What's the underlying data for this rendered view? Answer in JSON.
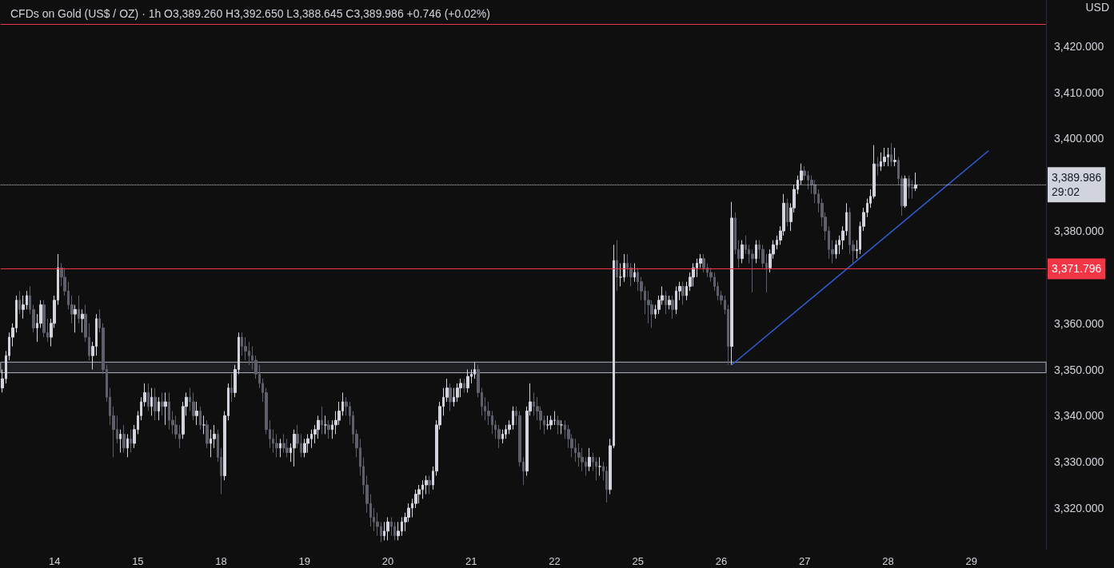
{
  "chart_data": {
    "type": "candlestick",
    "title": "CFDs on Gold (US$ / OZ) · 1h",
    "subtitle": "O3,389.260 H3,392.650 L3,388.645 C3,389.986 +0.746 (+0.02%)",
    "ylabel": "USD",
    "colors": [
      "#d1d4dc",
      "#d1d4dc",
      "#d1d4dc",
      "#d1d4dc",
      "#d1d4dc",
      "#5d606b",
      "#d1d4dc",
      "#d1d4dc",
      "#5d606b",
      "#5d606b",
      "#d1d4dc",
      "#d1d4dc",
      "#5d606b",
      "#5d606b",
      "#d1d4dc",
      "#d1d4dc",
      "#d1d4dc",
      "#5d606b",
      "#5d606b",
      "#5d606b",
      "#5d606b",
      "#d1d4dc",
      "#5d606b",
      "#d1d4dc",
      "#5d606b",
      "#5d606b",
      "#d1d4dc",
      "#d1d4dc",
      "#5d606b",
      "#5d606b",
      "#5d606b",
      "#5d606b",
      "#5d606b",
      "#5d606b",
      "#d1d4dc",
      "#5d606b",
      "#d1d4dc",
      "#5d606b",
      "#d1d4dc",
      "#d1d4dc",
      "#d1d4dc",
      "#d1d4dc",
      "#5d606b",
      "#d1d4dc",
      "#5d606b",
      "#d1d4dc",
      "#5d606b",
      "#d1d4dc",
      "#5d606b",
      "#5d606b",
      "#5d606b",
      "#5d606b",
      "#d1d4dc",
      "#d1d4dc",
      "#5d606b",
      "#5d606b",
      "#d1d4dc",
      "#5d606b",
      "#d1d4dc",
      "#5d606b",
      "#d1d4dc",
      "#d1d4dc",
      "#5d606b",
      "#5d606b",
      "#d1d4dc",
      "#d1d4dc",
      "#5d606b",
      "#d1d4dc",
      "#d1d4dc",
      "#5d606b",
      "#5d606b",
      "#5d606b",
      "#5d606b",
      "#5d606b",
      "#5d606b",
      "#5d606b",
      "#5d606b",
      "#5d606b",
      "#5d606b",
      "#5d606b",
      "#d1d4dc",
      "#5d606b",
      "#5d606b",
      "#d1d4dc",
      "#d1d4dc",
      "#5d606b",
      "#5d606b",
      "#d1d4dc",
      "#d1d4dc",
      "#d1d4dc",
      "#d1d4dc",
      "#d1d4dc",
      "#5d606b",
      "#d1d4dc",
      "#5d606b",
      "#d1d4dc",
      "#d1d4dc",
      "#d1d4dc",
      "#d1d4dc",
      "#5d606b",
      "#5d606b",
      "#5d606b",
      "#5d606b",
      "#5d606b",
      "#5d606b",
      "#5d606b",
      "#5d606b",
      "#5d606b",
      "#5d606b",
      "#5d606b",
      "#d1d4dc",
      "#d1d4dc",
      "#5d606b",
      "#5d606b",
      "#d1d4dc",
      "#d1d4dc",
      "#d1d4dc",
      "#d1d4dc",
      "#d1d4dc",
      "#d1d4dc",
      "#d1d4dc",
      "#d1d4dc",
      "#d1d4dc",
      "#5d606b",
      "#d1d4dc",
      "#d1d4dc",
      "#d1d4dc",
      "#d1d4dc",
      "#d1d4dc",
      "#5d606b",
      "#d1d4dc",
      "#d1d4dc",
      "#d1d4dc",
      "#5d606b",
      "#d1d4dc",
      "#d1d4dc",
      "#d1d4dc",
      "#5d606b",
      "#5d606b",
      "#5d606b",
      "#5d606b",
      "#5d606b",
      "#5d606b",
      "#5d606b",
      "#d1d4dc",
      "#d1d4dc",
      "#d1d4dc",
      "#d1d4dc",
      "#5d606b",
      "#5d606b",
      "#5d606b",
      "#d1d4dc",
      "#d1d4dc",
      "#5d606b",
      "#5d606b",
      "#5d606b",
      "#5d606b",
      "#d1d4dc",
      "#d1d4dc",
      "#d1d4dc",
      "#5d606b",
      "#d1d4dc",
      "#5d606b",
      "#5d606b",
      "#5d606b",
      "#5d606b",
      "#5d606b",
      "#5d606b",
      "#5d606b",
      "#d1d4dc",
      "#5d606b",
      "#5d606b",
      "#d1d4dc",
      "#5d606b",
      "#5d606b",
      "#d1d4dc",
      "#d1d4dc",
      "#5d606b",
      "#d1d4dc",
      "#d1d4dc",
      "#5d606b",
      "#5d606b",
      "#d1d4dc",
      "#5d606b",
      "#5d606b",
      "#5d606b",
      "#5d606b",
      "#5d606b",
      "#d1d4dc",
      "#d1d4dc",
      "#d1d4dc",
      "#5d606b",
      "#d1d4dc",
      "#5d606b",
      "#d1d4dc",
      "#d1d4dc",
      "#5d606b",
      "#d1d4dc",
      "#d1d4dc",
      "#d1d4dc",
      "#d1d4dc",
      "#d1d4dc",
      "#5d606b",
      "#5d606b",
      "#5d606b",
      "#5d606b",
      "#5d606b",
      "#5d606b",
      "#5d606b",
      "#5d606b",
      "#d1d4dc",
      "#5d606b",
      "#5d606b",
      "#d1d4dc",
      "#5d606b",
      "#5d606b",
      "#5d606b",
      "#d1d4dc",
      "#5d606b",
      "#5d606b",
      "#5d606b",
      "#d1d4dc",
      "#d1d4dc",
      "#d1d4dc",
      "#d1d4dc",
      "#d1d4dc",
      "#5d606b",
      "#d1d4dc",
      "#d1d4dc",
      "#d1d4dc",
      "#d1d4dc",
      "#5d606b",
      "#5d606b",
      "#5d606b",
      "#5d606b",
      "#5d606b",
      "#5d606b",
      "#5d606b",
      "#5d606b",
      "#5d606b",
      "#d1d4dc",
      "#d1d4dc",
      "#d1d4dc",
      "#d1d4dc",
      "#5d606b",
      "#5d606b",
      "#d1d4dc",
      "#d1d4dc",
      "#d1d4dc",
      "#d1d4dc",
      "#d1d4dc",
      "#d1d4dc",
      "#5d606b",
      "#d1d4dc",
      "#d1d4dc",
      "#d1d4dc",
      "#5d606b",
      "#d1d4dc",
      "#5d606b",
      "#5d606b",
      "#d1d4dc",
      "#5d606b",
      "#5d606b",
      "#d1d4dc",
      null,
      null,
      null,
      null,
      null,
      null,
      null,
      null,
      null,
      null,
      null,
      null,
      null,
      null,
      null,
      null,
      null,
      null,
      null,
      null,
      null,
      null,
      null,
      null,
      null,
      null,
      null,
      null,
      null,
      null,
      null,
      null,
      null,
      null,
      null,
      null,
      null
    ],
    "categories": [
      null,
      null,
      null,
      null,
      null,
      null,
      null,
      null,
      null,
      null,
      null,
      null,
      null,
      null,
      null,
      "14",
      null,
      null,
      null,
      null,
      null,
      null,
      null,
      null,
      null,
      null,
      null,
      null,
      null,
      null,
      null,
      null,
      null,
      null,
      null,
      null,
      null,
      null,
      null,
      "15",
      null,
      null,
      null,
      null,
      null,
      null,
      null,
      null,
      null,
      null,
      null,
      null,
      null,
      null,
      null,
      null,
      null,
      null,
      null,
      null,
      null,
      null,
      null,
      "18",
      null,
      null,
      null,
      null,
      null,
      null,
      null,
      null,
      null,
      null,
      null,
      null,
      null,
      null,
      null,
      null,
      null,
      null,
      null,
      null,
      null,
      null,
      null,
      "19",
      null,
      null,
      null,
      null,
      null,
      null,
      null,
      null,
      null,
      null,
      null,
      null,
      null,
      null,
      null,
      null,
      null,
      null,
      null,
      null,
      null,
      null,
      null,
      "20",
      null,
      null,
      null,
      null,
      null,
      null,
      null,
      null,
      null,
      null,
      null,
      null,
      null,
      null,
      null,
      null,
      null,
      null,
      null,
      null,
      null,
      null,
      null,
      "21",
      null,
      null,
      null,
      null,
      null,
      null,
      null,
      null,
      null,
      null,
      null,
      null,
      null,
      null,
      null,
      null,
      null,
      null,
      null,
      null,
      null,
      null,
      null,
      "22",
      null,
      null,
      null,
      null,
      null,
      null,
      null,
      null,
      null,
      null,
      null,
      null,
      null,
      null,
      null,
      null,
      null,
      null,
      null,
      null,
      null,
      null,
      null,
      "25",
      null,
      null,
      null,
      null,
      null,
      null,
      null,
      null,
      null,
      null,
      null,
      null,
      null,
      null,
      null,
      null,
      null,
      null,
      null,
      null,
      null,
      null,
      null,
      "26",
      null,
      null,
      null,
      null,
      null,
      null,
      null,
      null,
      null,
      null,
      null,
      null,
      null,
      null,
      null,
      null,
      null,
      null,
      null,
      null,
      null,
      null,
      null,
      "27",
      null,
      null,
      null,
      null,
      null,
      null,
      null,
      null,
      null,
      null,
      null,
      null,
      null,
      null,
      null,
      null,
      null,
      null,
      null,
      null,
      null,
      null,
      null,
      "28",
      null,
      null,
      null,
      null,
      null,
      null,
      null,
      null,
      null,
      null,
      null,
      null,
      null,
      null,
      null,
      null,
      null,
      null,
      null,
      null,
      null,
      null,
      null,
      "29",
      null,
      null,
      null,
      null,
      null,
      null,
      null,
      null,
      null,
      null,
      null,
      null,
      null,
      null,
      null,
      null,
      null,
      null,
      null,
      null,
      null
    ],
    "ohlc": [
      [
        3346,
        3350,
        3345,
        3348
      ],
      [
        3348,
        3354,
        3347,
        3353
      ],
      [
        3353,
        3358,
        3352,
        3357
      ],
      [
        3357,
        3360,
        3355,
        3359
      ],
      [
        3359,
        3366,
        3358,
        3365
      ],
      [
        3365,
        3367,
        3362,
        3363
      ],
      [
        3363,
        3366,
        3361,
        3364
      ],
      [
        3364,
        3367,
        3363,
        3366
      ],
      [
        3366,
        3368,
        3362,
        3363
      ],
      [
        3363,
        3364,
        3358,
        3359
      ],
      [
        3359,
        3362,
        3356,
        3360
      ],
      [
        3360,
        3365,
        3359,
        3364
      ],
      [
        3364,
        3365,
        3357,
        3358
      ],
      [
        3358,
        3361,
        3356,
        3357
      ],
      [
        3357,
        3361,
        3355,
        3360
      ],
      [
        3360,
        3366,
        3359,
        3365
      ],
      [
        3365,
        3375,
        3364,
        3372
      ],
      [
        3372,
        3373,
        3368,
        3370
      ],
      [
        3370,
        3372,
        3366,
        3367
      ],
      [
        3367,
        3369,
        3363,
        3364
      ],
      [
        3364,
        3366,
        3360,
        3362
      ],
      [
        3362,
        3364,
        3358,
        3363
      ],
      [
        3363,
        3366,
        3360,
        3361
      ],
      [
        3361,
        3363,
        3358,
        3362
      ],
      [
        3362,
        3364,
        3356,
        3357
      ],
      [
        3357,
        3360,
        3352,
        3353
      ],
      [
        3353,
        3356,
        3350,
        3355
      ],
      [
        3355,
        3362,
        3353,
        3361
      ],
      [
        3361,
        3363,
        3358,
        3359
      ],
      [
        3359,
        3360,
        3349,
        3350
      ],
      [
        3350,
        3351,
        3343,
        3344
      ],
      [
        3344,
        3346,
        3338,
        3340
      ],
      [
        3340,
        3342,
        3331,
        3337
      ],
      [
        3337,
        3340,
        3334,
        3335
      ],
      [
        3335,
        3337,
        3332,
        3336
      ],
      [
        3336,
        3338,
        3332,
        3333
      ],
      [
        3333,
        3336,
        3331,
        3335
      ],
      [
        3335,
        3337,
        3332,
        3334
      ],
      [
        3334,
        3338,
        3333,
        3337
      ],
      [
        3337,
        3341,
        3336,
        3340
      ],
      [
        3340,
        3344,
        3339,
        3343
      ],
      [
        3343,
        3347,
        3342,
        3345
      ],
      [
        3345,
        3347,
        3341,
        3342
      ],
      [
        3342,
        3346,
        3340,
        3344
      ],
      [
        3344,
        3346,
        3339,
        3341
      ],
      [
        3341,
        3344,
        3339,
        3343
      ],
      [
        3343,
        3345,
        3340,
        3342
      ],
      [
        3342,
        3345,
        3338,
        3343
      ],
      [
        3343,
        3345,
        3337,
        3339
      ],
      [
        3339,
        3341,
        3336,
        3338
      ],
      [
        3338,
        3340,
        3335,
        3336
      ],
      [
        3336,
        3338,
        3333,
        3335
      ],
      [
        3336,
        3343,
        3335,
        3342
      ],
      [
        3342,
        3345,
        3340,
        3344
      ],
      [
        3344,
        3346,
        3341,
        3343
      ],
      [
        3343,
        3345,
        3339,
        3340
      ],
      [
        3340,
        3343,
        3338,
        3341
      ],
      [
        3341,
        3342,
        3337,
        3338
      ],
      [
        3338,
        3340,
        3336,
        3338
      ],
      [
        3338,
        3339,
        3333,
        3334
      ],
      [
        3334,
        3337,
        3331,
        3335
      ],
      [
        3335,
        3338,
        3333,
        3336
      ],
      [
        3336,
        3337,
        3330,
        3331
      ],
      [
        3331,
        3333,
        3323,
        3327
      ],
      [
        3327,
        3341,
        3326,
        3340
      ],
      [
        3340,
        3347,
        3339,
        3346
      ],
      [
        3346,
        3349,
        3343,
        3345
      ],
      [
        3345,
        3351,
        3344,
        3350
      ],
      [
        3350,
        3358,
        3349,
        3357
      ],
      [
        3357,
        3358,
        3353,
        3355
      ],
      [
        3355,
        3357,
        3352,
        3354
      ],
      [
        3354,
        3356,
        3351,
        3353
      ],
      [
        3353,
        3355,
        3350,
        3352
      ],
      [
        3352,
        3353,
        3348,
        3349
      ],
      [
        3349,
        3351,
        3346,
        3347
      ],
      [
        3347,
        3348,
        3343,
        3345
      ],
      [
        3345,
        3346,
        3336,
        3337
      ],
      [
        3337,
        3339,
        3333,
        3335
      ],
      [
        3335,
        3337,
        3332,
        3334
      ],
      [
        3334,
        3336,
        3331,
        3333
      ],
      [
        3333,
        3335,
        3331,
        3334
      ],
      [
        3334,
        3336,
        3332,
        3333
      ],
      [
        3333,
        3335,
        3331,
        3332
      ],
      [
        3332,
        3334,
        3330,
        3333
      ],
      [
        3333,
        3337,
        3329,
        3336
      ],
      [
        3336,
        3338,
        3333,
        3334
      ],
      [
        3334,
        3336,
        3331,
        3332
      ],
      [
        3332,
        3335,
        3331,
        3334
      ],
      [
        3334,
        3336,
        3332,
        3335
      ],
      [
        3335,
        3337,
        3333,
        3336
      ],
      [
        3336,
        3338,
        3334,
        3337
      ],
      [
        3337,
        3340,
        3335,
        3339
      ],
      [
        3339,
        3342,
        3336,
        3338
      ],
      [
        3338,
        3340,
        3336,
        3338
      ],
      [
        3338,
        3339,
        3335,
        3337
      ],
      [
        3337,
        3339,
        3335,
        3338
      ],
      [
        3338,
        3341,
        3336,
        3339
      ],
      [
        3339,
        3343,
        3338,
        3341
      ],
      [
        3341,
        3345,
        3340,
        3343
      ],
      [
        3343,
        3344,
        3340,
        3342
      ],
      [
        3342,
        3343,
        3338,
        3340
      ],
      [
        3340,
        3341,
        3334,
        3336
      ],
      [
        3336,
        3337,
        3331,
        3333
      ],
      [
        3333,
        3335,
        3327,
        3329
      ],
      [
        3329,
        3331,
        3323,
        3325
      ],
      [
        3325,
        3327,
        3319,
        3321
      ],
      [
        3321,
        3323,
        3316,
        3318
      ],
      [
        3318,
        3320,
        3315,
        3317
      ],
      [
        3317,
        3319,
        3314,
        3316
      ],
      [
        3316,
        3317,
        3312.6,
        3314
      ],
      [
        3314,
        3317,
        3313,
        3315
      ],
      [
        3315,
        3318,
        3313,
        3317
      ],
      [
        3317,
        3318,
        3314,
        3316
      ],
      [
        3316,
        3317,
        3313,
        3314
      ],
      [
        3314,
        3317,
        3313,
        3315
      ],
      [
        3315,
        3318,
        3314,
        3317
      ],
      [
        3317,
        3319,
        3315,
        3318
      ],
      [
        3318,
        3321,
        3317,
        3320
      ],
      [
        3320,
        3322,
        3318,
        3321
      ],
      [
        3321,
        3324,
        3320,
        3323
      ],
      [
        3323,
        3325,
        3321,
        3324
      ],
      [
        3324,
        3326,
        3322,
        3325
      ],
      [
        3325,
        3327,
        3323,
        3326
      ],
      [
        3326,
        3327,
        3323,
        3325
      ],
      [
        3325,
        3329,
        3324,
        3328
      ],
      [
        3328,
        3339,
        3327,
        3338
      ],
      [
        3338,
        3343,
        3337,
        3342
      ],
      [
        3342,
        3346,
        3340,
        3344
      ],
      [
        3344,
        3348,
        3343,
        3346
      ],
      [
        3346,
        3347,
        3341,
        3343
      ],
      [
        3343,
        3346,
        3342,
        3344
      ],
      [
        3344,
        3347,
        3343,
        3346
      ],
      [
        3346,
        3348,
        3344,
        3347
      ],
      [
        3347,
        3348,
        3345,
        3346
      ],
      [
        3346,
        3350,
        3345,
        3348.5
      ],
      [
        3348.5,
        3350,
        3347,
        3349
      ],
      [
        3349,
        3351.6,
        3348,
        3350
      ],
      [
        3350,
        3351,
        3344,
        3345
      ],
      [
        3345,
        3346,
        3340,
        3342
      ],
      [
        3342,
        3344,
        3339,
        3341
      ],
      [
        3341,
        3343,
        3338,
        3340
      ],
      [
        3340,
        3341,
        3336,
        3338
      ],
      [
        3338,
        3339,
        3335,
        3337
      ],
      [
        3337,
        3338,
        3333,
        3335
      ],
      [
        3335,
        3337,
        3334,
        3336
      ],
      [
        3336,
        3338,
        3335,
        3337
      ],
      [
        3337,
        3339,
        3336,
        3338
      ],
      [
        3338,
        3342,
        3337,
        3341
      ],
      [
        3341,
        3342,
        3338,
        3340
      ],
      [
        3340,
        3341,
        3329,
        3330
      ],
      [
        3330,
        3331,
        3325,
        3328
      ],
      [
        3328,
        3342,
        3327,
        3341
      ],
      [
        3341,
        3347,
        3340,
        3343
      ],
      [
        3343,
        3345,
        3340,
        3342
      ],
      [
        3342,
        3344,
        3339,
        3341
      ],
      [
        3341,
        3342,
        3337,
        3339
      ],
      [
        3339,
        3340,
        3336,
        3338
      ],
      [
        3338,
        3340,
        3337,
        3338
      ],
      [
        3338,
        3340,
        3337,
        3339
      ],
      [
        3339,
        3341,
        3338,
        3339
      ],
      [
        3339,
        3340,
        3336,
        3338
      ],
      [
        3338,
        3339,
        3336,
        3338
      ],
      [
        3338,
        3339,
        3335,
        3337
      ],
      [
        3337,
        3338,
        3333,
        3335
      ],
      [
        3335,
        3336,
        3331,
        3333
      ],
      [
        3333,
        3335,
        3330,
        3332
      ],
      [
        3332,
        3334,
        3329,
        3331
      ],
      [
        3331,
        3333,
        3328,
        3330
      ],
      [
        3330,
        3331,
        3327,
        3329
      ],
      [
        3329,
        3333,
        3328,
        3331
      ],
      [
        3331,
        3332,
        3328,
        3330
      ],
      [
        3330,
        3331,
        3326,
        3329
      ],
      [
        3329,
        3331,
        3327,
        3329
      ],
      [
        3329,
        3330,
        3326,
        3328
      ],
      [
        3328,
        3329,
        3321.2,
        3324
      ],
      [
        3324,
        3335,
        3323,
        3333.5
      ],
      [
        3333.5,
        3377,
        3333,
        3373.6
      ],
      [
        3373.6,
        3378,
        3367,
        3370
      ],
      [
        3370,
        3373,
        3368,
        3370
      ],
      [
        3370,
        3375,
        3369,
        3373
      ],
      [
        3373,
        3375,
        3370,
        3372
      ],
      [
        3372,
        3373,
        3368,
        3370
      ],
      [
        3370,
        3373,
        3369,
        3371
      ],
      [
        3371,
        3372,
        3367,
        3369
      ],
      [
        3369,
        3370,
        3365,
        3367
      ],
      [
        3367,
        3368,
        3362,
        3365
      ],
      [
        3365,
        3367,
        3360,
        3364
      ],
      [
        3364,
        3365,
        3359,
        3362
      ],
      [
        3362,
        3364,
        3361,
        3363
      ],
      [
        3363,
        3366,
        3362,
        3365
      ],
      [
        3365,
        3368,
        3364,
        3366
      ],
      [
        3366,
        3367,
        3362,
        3364
      ],
      [
        3364,
        3366,
        3363,
        3365
      ],
      [
        3365,
        3366,
        3361,
        3363
      ],
      [
        3363,
        3368,
        3362,
        3367
      ],
      [
        3367,
        3369,
        3365,
        3368
      ],
      [
        3368,
        3369,
        3364,
        3366
      ],
      [
        3366,
        3369,
        3365,
        3368
      ],
      [
        3368,
        3371,
        3367,
        3370
      ],
      [
        3370,
        3373,
        3368,
        3372
      ],
      [
        3372,
        3374,
        3370,
        3373
      ],
      [
        3373,
        3375,
        3372,
        3374
      ],
      [
        3374,
        3375,
        3371,
        3372
      ],
      [
        3372,
        3373,
        3370,
        3371
      ],
      [
        3371,
        3372,
        3369,
        3370
      ],
      [
        3370,
        3371,
        3367,
        3368
      ],
      [
        3368,
        3369,
        3365,
        3366
      ],
      [
        3366,
        3367,
        3364,
        3365
      ],
      [
        3365,
        3366,
        3362,
        3363
      ],
      [
        3363,
        3364,
        3351,
        3355
      ],
      [
        3355,
        3386.3,
        3351,
        3382.8
      ],
      [
        3382.8,
        3384,
        3375,
        3376
      ],
      [
        3376,
        3378,
        3372,
        3374
      ],
      [
        3374,
        3378,
        3373,
        3377
      ],
      [
        3377,
        3379,
        3375,
        3376
      ],
      [
        3376,
        3377,
        3373,
        3375
      ],
      [
        3375,
        3376,
        3366.7,
        3374
      ],
      [
        3374,
        3378,
        3373,
        3377
      ],
      [
        3377,
        3378,
        3374,
        3376
      ],
      [
        3376,
        3377,
        3372,
        3373
      ],
      [
        3373,
        3375,
        3366.7,
        3372
      ],
      [
        3372,
        3376,
        3371,
        3375
      ],
      [
        3375,
        3378,
        3374,
        3377
      ],
      [
        3377,
        3379,
        3376,
        3378
      ],
      [
        3378,
        3381,
        3377,
        3380
      ],
      [
        3380,
        3388,
        3379,
        3386
      ],
      [
        3386,
        3387,
        3381,
        3382
      ],
      [
        3382,
        3386,
        3380,
        3385
      ],
      [
        3385,
        3390,
        3384,
        3389
      ],
      [
        3389,
        3392,
        3388,
        3391
      ],
      [
        3391,
        3394.6,
        3390,
        3393
      ],
      [
        3393,
        3394,
        3391,
        3392
      ],
      [
        3392,
        3393,
        3389,
        3391
      ],
      [
        3391,
        3392,
        3388,
        3390
      ],
      [
        3390,
        3391,
        3386,
        3388
      ],
      [
        3388,
        3389,
        3384,
        3386
      ],
      [
        3386,
        3387,
        3381,
        3383
      ],
      [
        3383,
        3384,
        3378,
        3380
      ],
      [
        3380,
        3381,
        3374,
        3376
      ],
      [
        3376,
        3378,
        3373,
        3375
      ],
      [
        3375,
        3378,
        3374,
        3377
      ],
      [
        3377,
        3379,
        3375,
        3378
      ],
      [
        3378,
        3381,
        3376,
        3380
      ],
      [
        3380,
        3386,
        3379,
        3384
      ],
      [
        3384,
        3385,
        3375,
        3377
      ],
      [
        3377,
        3378,
        3373,
        3375.7
      ],
      [
        3375.7,
        3378,
        3374,
        3376
      ],
      [
        3376,
        3382,
        3375,
        3381
      ],
      [
        3381,
        3385,
        3380,
        3384
      ],
      [
        3384,
        3387,
        3383,
        3386
      ],
      [
        3386,
        3389,
        3385,
        3387.5
      ],
      [
        3387.5,
        3398.6,
        3387,
        3394.5
      ],
      [
        3394.5,
        3396,
        3392,
        3394
      ],
      [
        3394,
        3397,
        3393,
        3395
      ],
      [
        3395,
        3398,
        3394,
        3396
      ],
      [
        3396,
        3398,
        3394,
        3396.5
      ],
      [
        3396.5,
        3399,
        3394,
        3395
      ],
      [
        3395,
        3398,
        3394,
        3395.3
      ],
      [
        3395.3,
        3396,
        3390,
        3391.3
      ],
      [
        3391.3,
        3392,
        3383.3,
        3385.4
      ],
      [
        3385.4,
        3392,
        3385,
        3391.3
      ],
      [
        3391.3,
        3392,
        3387,
        3389.5
      ],
      [
        3389.5,
        3391,
        3387,
        3389.26
      ],
      [
        3389.26,
        3392.65,
        3388.645,
        3389.986
      ],
      null,
      null,
      null,
      null,
      null,
      null,
      null,
      null,
      null,
      null,
      null,
      null,
      null,
      null,
      null,
      null,
      null,
      null,
      null,
      null,
      null,
      null,
      null,
      null,
      null,
      null,
      null,
      null,
      null,
      null,
      null,
      null,
      null,
      null,
      null,
      null,
      null
    ],
    "ylim": [
      3311,
      3430
    ],
    "yticks": [
      {
        "value": 3320,
        "label": "3,320.000"
      },
      {
        "value": 3330,
        "label": "3,330.000"
      },
      {
        "value": 3340,
        "label": "3,340.000"
      },
      {
        "value": 3350,
        "label": "3,350.000"
      },
      {
        "value": 3360,
        "label": "3,360.000"
      },
      {
        "value": 3380,
        "label": "3,380.000"
      },
      {
        "value": 3400,
        "label": "3,400.000"
      },
      {
        "value": 3410,
        "label": "3,410.000"
      },
      {
        "value": 3420,
        "label": "3,420.000"
      }
    ],
    "series": [
      {
        "type": "line",
        "values": [
          null,
          null,
          null,
          null,
          null,
          null,
          null,
          null,
          null,
          null,
          null,
          null,
          null,
          null,
          null,
          null,
          null,
          null,
          null,
          null,
          null,
          null,
          null,
          null,
          null,
          null,
          null,
          null,
          null,
          null,
          null,
          null,
          null,
          null,
          null,
          null,
          null,
          null,
          null,
          null,
          null,
          null,
          null,
          null,
          null,
          null,
          null,
          null,
          null,
          null,
          null,
          null,
          null,
          null,
          null,
          null,
          null,
          null,
          null,
          null,
          null,
          null,
          null,
          null,
          null,
          null,
          null,
          null,
          null,
          null,
          null,
          null,
          null,
          null,
          null,
          null,
          null,
          null,
          null,
          null,
          null,
          null,
          null,
          null,
          null,
          null,
          null,
          null,
          null,
          null,
          null,
          null,
          null,
          null,
          null,
          null,
          null,
          null,
          null,
          null,
          null,
          null,
          null,
          null,
          null,
          null,
          null,
          null,
          null,
          null,
          null,
          null,
          null,
          null,
          null,
          null,
          null,
          null,
          null,
          null,
          null,
          null,
          null,
          null,
          null,
          null,
          null,
          null,
          null,
          null,
          null,
          null,
          null,
          null,
          null,
          null,
          null,
          null,
          null,
          null,
          null,
          null,
          null,
          null,
          null,
          null,
          null,
          null,
          null,
          null,
          null,
          null,
          null,
          null,
          null,
          null,
          null,
          null,
          null,
          null,
          null,
          null,
          null,
          null,
          null,
          null,
          null,
          null,
          null,
          null,
          null,
          null,
          null,
          null,
          null,
          null,
          null,
          null,
          null,
          null,
          null,
          null,
          null,
          null,
          null,
          null,
          null,
          null,
          null,
          null,
          null,
          null,
          null,
          null,
          null,
          null,
          null,
          null,
          null,
          null,
          null,
          null,
          null,
          null,
          null,
          null,
          null,
          null,
          null,
          null,
          3351.0,
          null,
          null,
          null,
          null,
          null,
          null,
          null,
          null,
          null,
          null,
          null,
          null,
          null,
          null,
          null,
          null,
          null,
          null,
          null,
          null,
          null,
          null,
          null,
          null,
          null,
          null,
          null,
          null,
          null,
          null,
          null,
          null,
          null,
          null,
          null,
          null,
          null,
          null,
          null,
          null,
          null,
          null,
          null,
          null,
          null,
          null,
          null,
          null,
          null,
          null,
          null,
          null,
          null,
          null,
          null,
          null,
          null,
          null,
          null,
          null,
          null,
          null,
          null,
          null,
          null,
          null,
          null,
          null,
          null,
          null,
          null,
          null,
          null,
          3397.4,
          null,
          null,
          null,
          null,
          null,
          null,
          null,
          null,
          null,
          null,
          null,
          null,
          null,
          null,
          null,
          null
        ],
        "color": "#2f5fd8"
      }
    ],
    "ref_lines": [
      {
        "axis": "y",
        "value": 3424.8,
        "label": null,
        "color": "#f23645"
      },
      {
        "axis": "y",
        "value": 3371.796,
        "label": "3,371.796",
        "color": "#f23645"
      },
      {
        "axis": "y",
        "value": 3389.986,
        "label": "3,389.986\n29:02",
        "color": "#d1d4dc",
        "line_style": "dotted"
      }
    ],
    "bands": [
      {
        "axis": "y",
        "from": 3349.3,
        "to": 3351.6,
        "label": null,
        "color": "#1e1f22"
      }
    ]
  }
}
